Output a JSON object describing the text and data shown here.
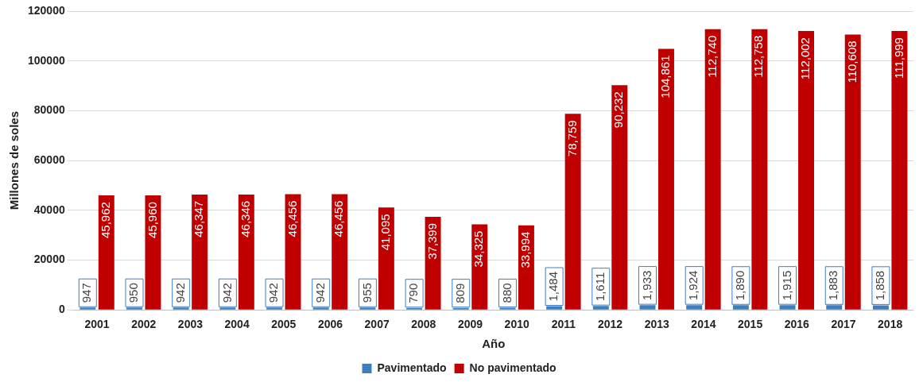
{
  "chart_data": {
    "type": "bar",
    "xlabel": "Año",
    "ylabel": "Millones de soles",
    "categories": [
      "2001",
      "2002",
      "2003",
      "2004",
      "2005",
      "2006",
      "2007",
      "2008",
      "2009",
      "2010",
      "2011",
      "2012",
      "2013",
      "2014",
      "2015",
      "2016",
      "2017",
      "2018"
    ],
    "series": [
      {
        "name": "Pavimentado",
        "color": "#3d7ebf",
        "values": [
          947,
          950,
          942,
          942,
          942,
          942,
          955,
          790,
          809,
          880,
          1484,
          1611,
          1933,
          1924,
          1890,
          1915,
          1883,
          1858
        ],
        "value_labels": [
          "947",
          "950",
          "942",
          "942",
          "942",
          "942",
          "955",
          "790",
          "809",
          "880",
          "1,484",
          "1,611",
          "1,933",
          "1,924",
          "1,890",
          "1,915",
          "1,883",
          "1,858"
        ]
      },
      {
        "name": "No pavimentado",
        "color": "#c00000",
        "values": [
          45962,
          45960,
          46347,
          46346,
          46456,
          46456,
          41095,
          37399,
          34325,
          33994,
          78759,
          90232,
          104861,
          112740,
          112758,
          112002,
          110608,
          111999
        ],
        "value_labels": [
          "45,962",
          "45,960",
          "46,347",
          "46,346",
          "46,456",
          "46,456",
          "41,095",
          "37,399",
          "34,325",
          "33,994",
          "78,759",
          "90,232",
          "104,861",
          "112,740",
          "112,758",
          "112,002",
          "110,608",
          "111,999"
        ]
      }
    ],
    "ylim": [
      0,
      120000
    ],
    "yticks": [
      0,
      20000,
      40000,
      60000,
      80000,
      100000,
      120000
    ],
    "grid": "y",
    "legend": "bottom"
  }
}
